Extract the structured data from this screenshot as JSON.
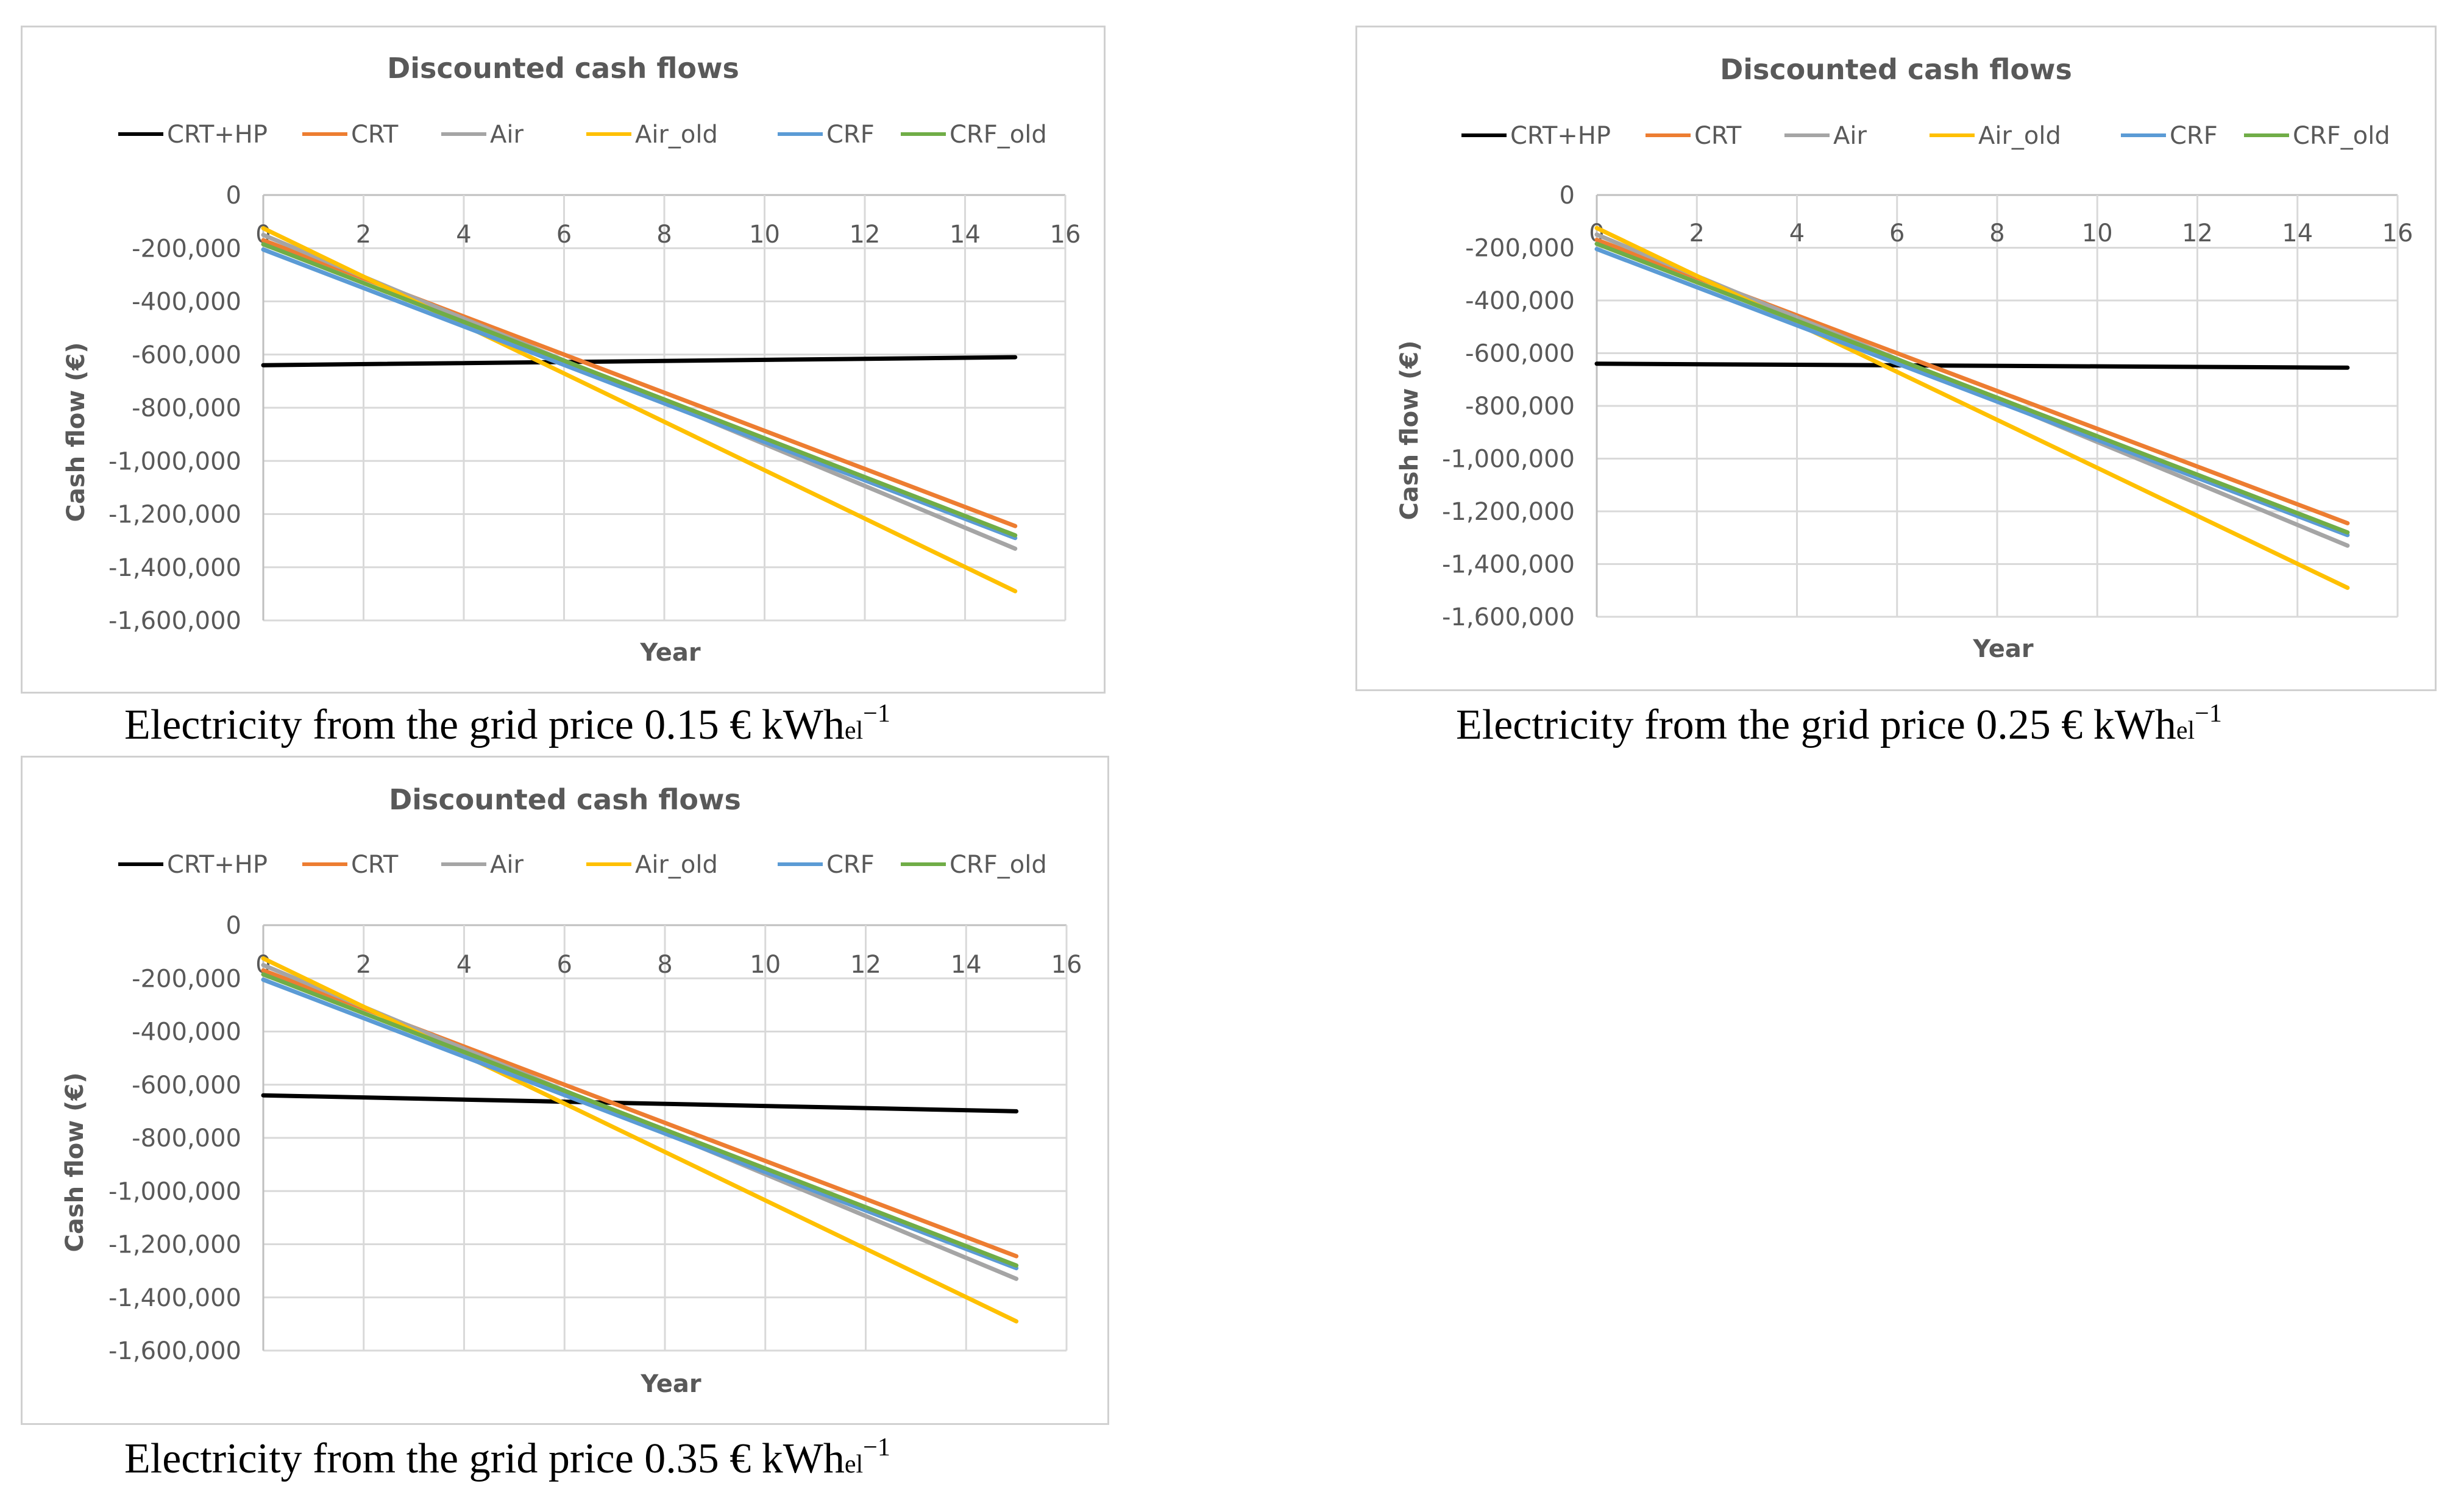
{
  "colors": {
    "CRT+HP": "#000000",
    "CRT": "#ED7D31",
    "Air": "#A5A5A5",
    "Air_old": "#FFC000",
    "CRF": "#5B9BD5",
    "CRF_old": "#70AD47"
  },
  "captions": [
    {
      "main": "Electricity from the grid price 0.15 € kWh",
      "sub": "el",
      "sup": "−1"
    },
    {
      "main": "Electricity from the grid price 0.25 € kWh",
      "sub": "el",
      "sup": "−1"
    },
    {
      "main": "Electricity from the grid price 0.35 € kWh",
      "sub": "el",
      "sup": "−1"
    }
  ],
  "chart_data": [
    {
      "type": "line",
      "title": "Discounted cash flows",
      "xlabel": "Year",
      "ylabel": "Cash flow  (€)",
      "xlim": [
        0,
        16
      ],
      "ylim": [
        -1600000,
        0
      ],
      "x_ticks": [
        "0",
        "2",
        "4",
        "6",
        "8",
        "10",
        "12",
        "14",
        "16"
      ],
      "y_ticks": [
        "0",
        "-200,000",
        "-400,000",
        "-600,000",
        "-800,000",
        "-1,000,000",
        "-1,200,000",
        "-1,400,000",
        "-1,600,000"
      ],
      "legend_position": "top",
      "series": [
        {
          "name": "CRT+HP",
          "x": [
            0,
            15
          ],
          "values": [
            -640000,
            -610000
          ]
        },
        {
          "name": "CRT",
          "x": [
            0,
            15
          ],
          "values": [
            -170000,
            -1245000
          ]
        },
        {
          "name": "Air",
          "x": [
            0,
            15
          ],
          "values": [
            -150000,
            -1330000
          ]
        },
        {
          "name": "Air_old",
          "x": [
            0,
            15
          ],
          "values": [
            -125000,
            -1490000
          ]
        },
        {
          "name": "CRF",
          "x": [
            0,
            15
          ],
          "values": [
            -205000,
            -1290000
          ]
        },
        {
          "name": "CRF_old",
          "x": [
            0,
            15
          ],
          "values": [
            -185000,
            -1280000
          ]
        }
      ]
    },
    {
      "type": "line",
      "title": "Discounted cash flows",
      "xlabel": "Year",
      "ylabel": "Cash flow  (€)",
      "xlim": [
        0,
        16
      ],
      "ylim": [
        -1600000,
        0
      ],
      "x_ticks": [
        "0",
        "2",
        "4",
        "6",
        "8",
        "10",
        "12",
        "14",
        "16"
      ],
      "y_ticks": [
        "0",
        "-200,000",
        "-400,000",
        "-600,000",
        "-800,000",
        "-1,000,000",
        "-1,200,000",
        "-1,400,000",
        "-1,600,000"
      ],
      "legend_position": "top",
      "series": [
        {
          "name": "CRT+HP",
          "x": [
            0,
            15
          ],
          "values": [
            -640000,
            -655000
          ]
        },
        {
          "name": "CRT",
          "x": [
            0,
            15
          ],
          "values": [
            -170000,
            -1245000
          ]
        },
        {
          "name": "Air",
          "x": [
            0,
            15
          ],
          "values": [
            -150000,
            -1330000
          ]
        },
        {
          "name": "Air_old",
          "x": [
            0,
            15
          ],
          "values": [
            -125000,
            -1490000
          ]
        },
        {
          "name": "CRF",
          "x": [
            0,
            15
          ],
          "values": [
            -205000,
            -1290000
          ]
        },
        {
          "name": "CRF_old",
          "x": [
            0,
            15
          ],
          "values": [
            -185000,
            -1280000
          ]
        }
      ]
    },
    {
      "type": "line",
      "title": "Discounted cash flows",
      "xlabel": "Year",
      "ylabel": "Cash flow  (€)",
      "xlim": [
        0,
        16
      ],
      "ylim": [
        -1600000,
        0
      ],
      "x_ticks": [
        "0",
        "2",
        "4",
        "6",
        "8",
        "10",
        "12",
        "14",
        "16"
      ],
      "y_ticks": [
        "0",
        "-200,000",
        "-400,000",
        "-600,000",
        "-800,000",
        "-1,000,000",
        "-1,200,000",
        "-1,400,000",
        "-1,600,000"
      ],
      "legend_position": "top",
      "series": [
        {
          "name": "CRT+HP",
          "x": [
            0,
            15
          ],
          "values": [
            -640000,
            -700000
          ]
        },
        {
          "name": "CRT",
          "x": [
            0,
            15
          ],
          "values": [
            -170000,
            -1245000
          ]
        },
        {
          "name": "Air",
          "x": [
            0,
            15
          ],
          "values": [
            -150000,
            -1330000
          ]
        },
        {
          "name": "Air_old",
          "x": [
            0,
            15
          ],
          "values": [
            -125000,
            -1490000
          ]
        },
        {
          "name": "CRF",
          "x": [
            0,
            15
          ],
          "values": [
            -205000,
            -1290000
          ]
        },
        {
          "name": "CRF_old",
          "x": [
            0,
            15
          ],
          "values": [
            -185000,
            -1280000
          ]
        }
      ]
    }
  ]
}
